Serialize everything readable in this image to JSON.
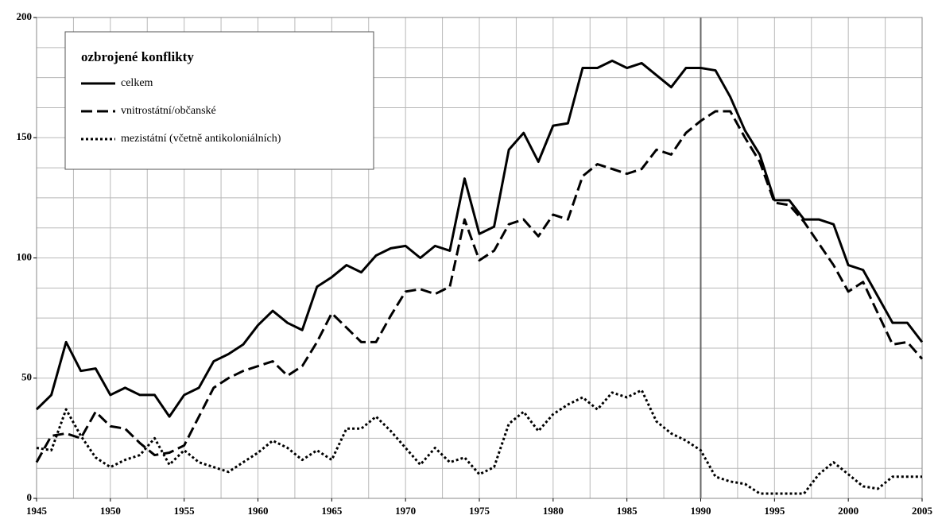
{
  "chart_data": {
    "type": "line",
    "legend_title": "ozbrojené konflikty",
    "legend": "upper left",
    "x": [
      1945,
      1946,
      1947,
      1948,
      1949,
      1950,
      1951,
      1952,
      1953,
      1954,
      1955,
      1956,
      1957,
      1958,
      1959,
      1960,
      1961,
      1962,
      1963,
      1964,
      1965,
      1966,
      1967,
      1968,
      1969,
      1970,
      1971,
      1972,
      1973,
      1974,
      1975,
      1976,
      1977,
      1978,
      1979,
      1980,
      1981,
      1982,
      1983,
      1984,
      1985,
      1986,
      1987,
      1988,
      1989,
      1990,
      1991,
      1992,
      1993,
      1994,
      1995,
      1996,
      1997,
      1998,
      1999,
      2000,
      2001,
      2002,
      2003,
      2004,
      2005
    ],
    "series": [
      {
        "name": "celkem",
        "color": "#000000",
        "dash": "solid",
        "values": [
          37,
          43,
          65,
          53,
          54,
          43,
          46,
          43,
          43,
          34,
          43,
          46,
          57,
          60,
          64,
          72,
          78,
          73,
          70,
          88,
          92,
          97,
          94,
          101,
          104,
          105,
          100,
          105,
          103,
          133,
          110,
          113,
          145,
          152,
          140,
          155,
          156,
          179,
          179,
          182,
          179,
          181,
          176,
          171,
          179,
          179,
          178,
          167,
          153,
          143,
          124,
          124,
          116,
          116,
          114,
          97,
          95,
          84,
          73,
          73,
          65
        ]
      },
      {
        "name": "vnitrostátní/občanské",
        "color": "#000000",
        "dash": "dashed",
        "values": [
          15,
          26,
          27,
          25,
          36,
          30,
          29,
          23,
          18,
          19,
          22,
          34,
          46,
          50,
          53,
          55,
          57,
          51,
          55,
          65,
          77,
          71,
          65,
          65,
          76,
          86,
          87,
          85,
          88,
          116,
          99,
          103,
          114,
          116,
          109,
          118,
          116,
          134,
          139,
          137,
          135,
          137,
          145,
          143,
          152,
          157,
          161,
          161,
          150,
          140,
          123,
          122,
          115,
          106,
          97,
          86,
          90,
          77,
          64,
          65,
          58
        ]
      },
      {
        "name": "mezistátní (včetně antikoloniálních)",
        "color": "#000000",
        "dash": "dotted",
        "values": [
          21,
          20,
          37,
          26,
          17,
          13,
          16,
          18,
          25,
          14,
          20,
          15,
          13,
          11,
          15,
          19,
          24,
          21,
          16,
          20,
          16,
          29,
          29,
          34,
          28,
          21,
          14,
          21,
          15,
          17,
          10,
          13,
          31,
          36,
          28,
          35,
          39,
          42,
          37,
          44,
          42,
          45,
          32,
          27,
          24,
          20,
          9,
          7,
          6,
          2,
          2,
          2,
          2,
          10,
          15,
          10,
          5,
          4,
          9,
          9,
          9
        ]
      }
    ],
    "xlim": [
      1945,
      2005
    ],
    "ylim": [
      0,
      200
    ],
    "xticks": [
      1945,
      1950,
      1955,
      1960,
      1965,
      1970,
      1975,
      1980,
      1985,
      1990,
      1995,
      2000,
      2005
    ],
    "yticks": [
      0,
      50,
      100,
      150,
      200
    ],
    "grid_x": [
      1945,
      1947.5,
      1950,
      1952.5,
      1955,
      1957.5,
      1960,
      1962.5,
      1965,
      1967.5,
      1970,
      1972.5,
      1975,
      1977.5,
      1980,
      1982.5,
      1985,
      1987.5,
      1990,
      1992.5,
      1995,
      1997.5,
      2000,
      2002.5,
      2005
    ],
    "grid_y": [
      0,
      12.5,
      25,
      37.5,
      50,
      62.5,
      75,
      87.5,
      100,
      112.5,
      125,
      137.5,
      150,
      162.5,
      175,
      187.5,
      200
    ],
    "reference_x": 1990
  }
}
